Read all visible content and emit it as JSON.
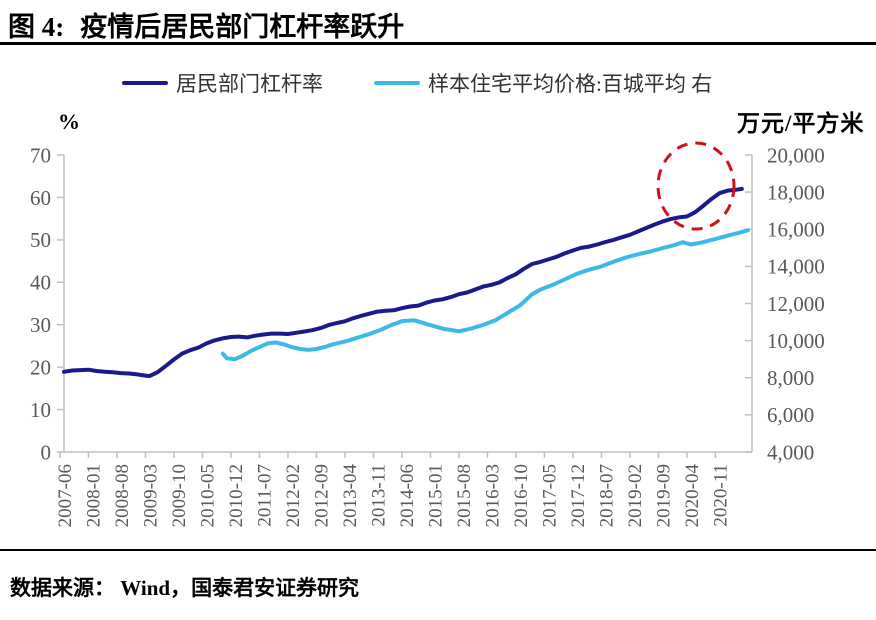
{
  "header": {
    "figure_label": "图 4:",
    "title": "疫情后居民部门杠杆率跃升"
  },
  "footer": {
    "source": "数据来源： Wind，国泰君安证券研究"
  },
  "chart_data": {
    "type": "line",
    "title": "疫情后居民部门杠杆率跃升",
    "grid": false,
    "legend_position": "top",
    "left_axis": {
      "unit": "%",
      "range": [
        0,
        70
      ],
      "ticks": [
        "0",
        "10",
        "20",
        "30",
        "40",
        "50",
        "60",
        "70"
      ]
    },
    "right_axis": {
      "unit": "万元/平方米",
      "range": [
        4000,
        20000
      ],
      "ticks": [
        "4,000",
        "6,000",
        "8,000",
        "10,000",
        "12,000",
        "14,000",
        "16,000",
        "18,000",
        "20,000"
      ]
    },
    "x_axis": {
      "note": "month index 0 = 2007-06, one label every 7 months",
      "tick_labels": [
        "2007-06",
        "2008-01",
        "2008-08",
        "2009-03",
        "2009-10",
        "2010-05",
        "2010-12",
        "2011-07",
        "2012-02",
        "2012-09",
        "2013-04",
        "2013-11",
        "2014-06",
        "2015-01",
        "2015-08",
        "2016-03",
        "2016-10",
        "2017-05",
        "2017-12",
        "2018-07",
        "2019-02",
        "2019-09",
        "2020-04",
        "2020-11"
      ],
      "months_per_tick": 7
    },
    "series": [
      {
        "name": "居民部门杠杆率",
        "axis": "left",
        "color": "#1a1a8c",
        "points": [
          [
            0,
            18.9
          ],
          [
            2,
            19.2
          ],
          [
            4,
            19.3
          ],
          [
            6,
            19.4
          ],
          [
            8,
            19.1
          ],
          [
            10,
            18.9
          ],
          [
            12,
            18.8
          ],
          [
            14,
            18.6
          ],
          [
            16,
            18.5
          ],
          [
            18,
            18.3
          ],
          [
            20,
            18.0
          ],
          [
            21,
            17.9
          ],
          [
            23,
            18.8
          ],
          [
            25,
            20.3
          ],
          [
            27,
            21.8
          ],
          [
            29,
            23.2
          ],
          [
            31,
            24.0
          ],
          [
            33,
            24.6
          ],
          [
            35,
            25.6
          ],
          [
            37,
            26.3
          ],
          [
            39,
            26.8
          ],
          [
            41,
            27.1
          ],
          [
            43,
            27.2
          ],
          [
            45,
            27.0
          ],
          [
            47,
            27.4
          ],
          [
            49,
            27.7
          ],
          [
            51,
            27.9
          ],
          [
            53,
            27.9
          ],
          [
            55,
            27.8
          ],
          [
            57,
            28.1
          ],
          [
            59,
            28.4
          ],
          [
            61,
            28.7
          ],
          [
            63,
            29.2
          ],
          [
            65,
            29.9
          ],
          [
            67,
            30.4
          ],
          [
            69,
            30.8
          ],
          [
            71,
            31.5
          ],
          [
            73,
            32.1
          ],
          [
            75,
            32.6
          ],
          [
            77,
            33.1
          ],
          [
            79,
            33.3
          ],
          [
            81,
            33.4
          ],
          [
            83,
            33.9
          ],
          [
            85,
            34.3
          ],
          [
            87,
            34.5
          ],
          [
            89,
            35.2
          ],
          [
            91,
            35.7
          ],
          [
            93,
            36.0
          ],
          [
            95,
            36.5
          ],
          [
            97,
            37.2
          ],
          [
            99,
            37.6
          ],
          [
            101,
            38.3
          ],
          [
            103,
            39.0
          ],
          [
            105,
            39.4
          ],
          [
            107,
            40.0
          ],
          [
            109,
            41.0
          ],
          [
            111,
            41.9
          ],
          [
            113,
            43.2
          ],
          [
            115,
            44.3
          ],
          [
            117,
            44.8
          ],
          [
            119,
            45.4
          ],
          [
            121,
            46.0
          ],
          [
            123,
            46.8
          ],
          [
            125,
            47.5
          ],
          [
            127,
            48.1
          ],
          [
            129,
            48.4
          ],
          [
            131,
            48.9
          ],
          [
            133,
            49.5
          ],
          [
            135,
            50.0
          ],
          [
            137,
            50.6
          ],
          [
            139,
            51.2
          ],
          [
            141,
            52.0
          ],
          [
            143,
            52.8
          ],
          [
            145,
            53.6
          ],
          [
            147,
            54.3
          ],
          [
            149,
            54.9
          ],
          [
            151,
            55.3
          ],
          [
            153,
            55.5
          ],
          [
            155,
            56.5
          ],
          [
            157,
            58.0
          ],
          [
            159,
            59.6
          ],
          [
            161,
            61.0
          ],
          [
            163,
            61.6
          ],
          [
            165,
            61.8
          ],
          [
            166.5,
            62.0
          ]
        ]
      },
      {
        "name": "样本住宅平均价格:百城平均 右",
        "axis": "right",
        "color": "#3cb9e9",
        "points": [
          [
            39,
            9300
          ],
          [
            40,
            9050
          ],
          [
            42,
            9000
          ],
          [
            44,
            9200
          ],
          [
            46,
            9450
          ],
          [
            48,
            9650
          ],
          [
            50,
            9850
          ],
          [
            52,
            9900
          ],
          [
            54,
            9800
          ],
          [
            56,
            9650
          ],
          [
            58,
            9550
          ],
          [
            60,
            9500
          ],
          [
            62,
            9550
          ],
          [
            64,
            9650
          ],
          [
            66,
            9800
          ],
          [
            69,
            9950
          ],
          [
            72,
            10150
          ],
          [
            75,
            10350
          ],
          [
            78,
            10600
          ],
          [
            80,
            10800
          ],
          [
            83,
            11050
          ],
          [
            86,
            11100
          ],
          [
            89,
            10900
          ],
          [
            93,
            10650
          ],
          [
            97,
            10500
          ],
          [
            100,
            10650
          ],
          [
            103,
            10850
          ],
          [
            106,
            11100
          ],
          [
            109,
            11500
          ],
          [
            112,
            11900
          ],
          [
            115,
            12500
          ],
          [
            117,
            12750
          ],
          [
            120,
            13000
          ],
          [
            123,
            13300
          ],
          [
            126,
            13600
          ],
          [
            129,
            13820
          ],
          [
            132,
            14000
          ],
          [
            135,
            14250
          ],
          [
            138,
            14480
          ],
          [
            141,
            14650
          ],
          [
            144,
            14800
          ],
          [
            147,
            14980
          ],
          [
            150,
            15150
          ],
          [
            152,
            15300
          ],
          [
            154,
            15180
          ],
          [
            157,
            15300
          ],
          [
            160,
            15480
          ],
          [
            163,
            15650
          ],
          [
            166,
            15820
          ],
          [
            168,
            15950
          ]
        ]
      }
    ],
    "annotation": {
      "type": "dashed-ellipse",
      "color": "#cf1020",
      "target": "2020 jump in leverage ratio"
    }
  }
}
